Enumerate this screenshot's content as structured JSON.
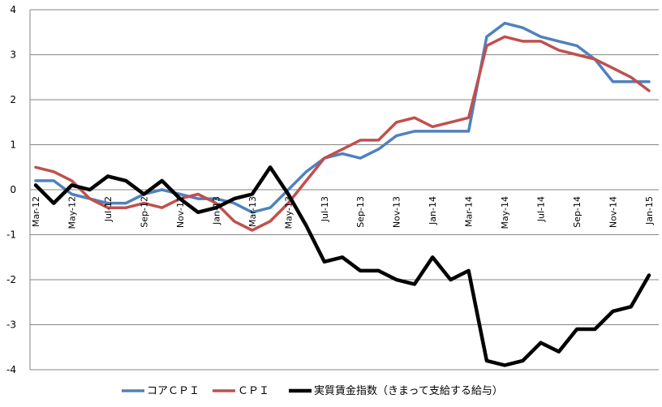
{
  "chart_data": {
    "type": "line",
    "title": "",
    "xlabel": "",
    "ylabel": "",
    "ylim": [
      -4,
      4
    ],
    "yticks": [
      4,
      3,
      2,
      1,
      0,
      -1,
      -2,
      -3,
      -4
    ],
    "grid": true,
    "legend_position": "bottom",
    "x": [
      "Mar-12",
      "Apr-12",
      "May-12",
      "Jun-12",
      "Jul-12",
      "Aug-12",
      "Sep-12",
      "Oct-12",
      "Nov-12",
      "Dec-12",
      "Jan-13",
      "Feb-13",
      "Mar-13",
      "Apr-13",
      "May-13",
      "Jun-13",
      "Jul-13",
      "Aug-13",
      "Sep-13",
      "Oct-13",
      "Nov-13",
      "Dec-13",
      "Jan-14",
      "Feb-14",
      "Mar-14",
      "Apr-14",
      "May-14",
      "Jun-14",
      "Jul-14",
      "Aug-14",
      "Sep-14",
      "Oct-14",
      "Nov-14",
      "Dec-14",
      "Jan-15"
    ],
    "x_tick_labels": [
      "Mar-12",
      "May-12",
      "Jul-12",
      "Sep-12",
      "Nov-12",
      "Jan-13",
      "Mar-13",
      "May-13",
      "Jul-13",
      "Sep-13",
      "Nov-13",
      "Jan-14",
      "Mar-14",
      "May-14",
      "Jul-14",
      "Sep-14",
      "Nov-14",
      "Jan-15"
    ],
    "series": [
      {
        "name": "コアＣＰＩ",
        "color": "#4f81bd",
        "values": [
          0.2,
          0.2,
          -0.1,
          -0.2,
          -0.3,
          -0.3,
          -0.1,
          0.0,
          -0.1,
          -0.2,
          -0.2,
          -0.3,
          -0.5,
          -0.4,
          0.0,
          0.4,
          0.7,
          0.8,
          0.7,
          0.9,
          1.2,
          1.3,
          1.3,
          1.3,
          1.3,
          3.4,
          3.7,
          3.6,
          3.4,
          3.3,
          3.2,
          2.9,
          2.4,
          2.4,
          2.4
        ]
      },
      {
        "name": "ＣＰＩ",
        "color": "#c0504d",
        "values": [
          0.5,
          0.4,
          0.2,
          -0.2,
          -0.4,
          -0.4,
          -0.3,
          -0.4,
          -0.2,
          -0.1,
          -0.3,
          -0.7,
          -0.9,
          -0.7,
          -0.3,
          0.2,
          0.7,
          0.9,
          1.1,
          1.1,
          1.5,
          1.6,
          1.4,
          1.5,
          1.6,
          3.2,
          3.4,
          3.3,
          3.3,
          3.1,
          3.0,
          2.9,
          2.7,
          2.5,
          2.2
        ]
      },
      {
        "name": "実質賃金指数（きまって支給する給与）",
        "color": "#000000",
        "values": [
          0.1,
          -0.3,
          0.1,
          0.0,
          0.3,
          0.2,
          -0.1,
          0.2,
          -0.2,
          -0.5,
          -0.4,
          -0.2,
          -0.1,
          0.5,
          -0.1,
          -0.8,
          -1.6,
          -1.5,
          -1.8,
          -1.8,
          -2.0,
          -2.1,
          -1.5,
          -2.0,
          -1.8,
          -3.8,
          -3.9,
          -3.8,
          -3.4,
          -3.6,
          -3.1,
          -3.1,
          -2.7,
          -2.6,
          -1.9
        ]
      }
    ]
  }
}
